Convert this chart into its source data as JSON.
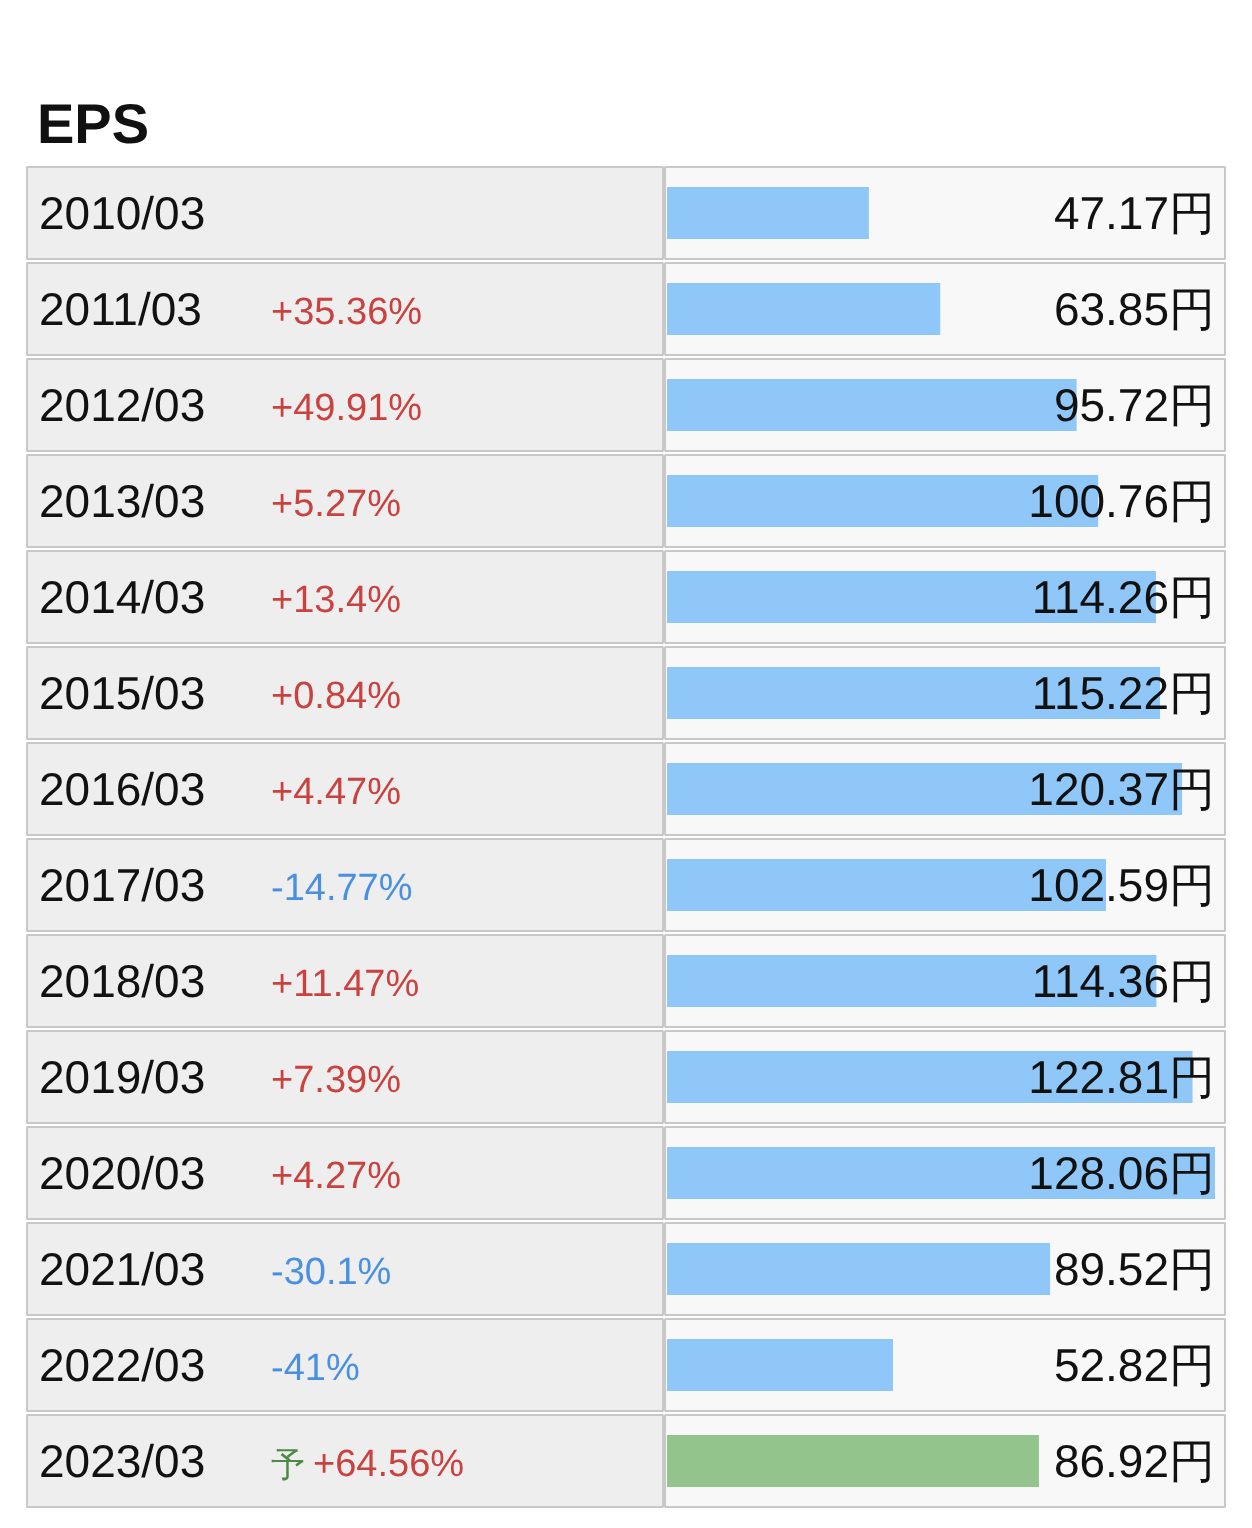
{
  "chart_data": {
    "type": "bar",
    "orientation": "horizontal",
    "title": "EPS",
    "categories": [
      "2010/03",
      "2011/03",
      "2012/03",
      "2013/03",
      "2014/03",
      "2015/03",
      "2016/03",
      "2017/03",
      "2018/03",
      "2019/03",
      "2020/03",
      "2021/03",
      "2022/03",
      "2023/03"
    ],
    "values": [
      47.17,
      63.85,
      95.72,
      100.76,
      114.26,
      115.22,
      120.37,
      102.59,
      114.36,
      122.81,
      128.06,
      89.52,
      52.82,
      86.92
    ],
    "colors": [
      "#8ec7f8",
      "#8ec7f8",
      "#8ec7f8",
      "#8ec7f8",
      "#8ec7f8",
      "#8ec7f8",
      "#8ec7f8",
      "#8ec7f8",
      "#8ec7f8",
      "#8ec7f8",
      "#8ec7f8",
      "#8ec7f8",
      "#8ec7f8",
      "#93c48b"
    ],
    "value_labels": [
      "47.17円",
      "63.85円",
      "95.72円",
      "100.76円",
      "114.26円",
      "115.22円",
      "120.37円",
      "102.59円",
      "114.36円",
      "122.81円",
      "128.06円",
      "89.52円",
      "52.82円",
      "86.92円"
    ],
    "annotations": [
      "+35.36%",
      "+49.91%",
      "+5.27%",
      "+13.4%",
      "+0.84%",
      "+4.47%",
      "-14.77%",
      "+11.47%",
      "+7.39%",
      "+4.27%",
      "-30.1%",
      "-41%",
      "予",
      "+64.56%"
    ]
  }
}
